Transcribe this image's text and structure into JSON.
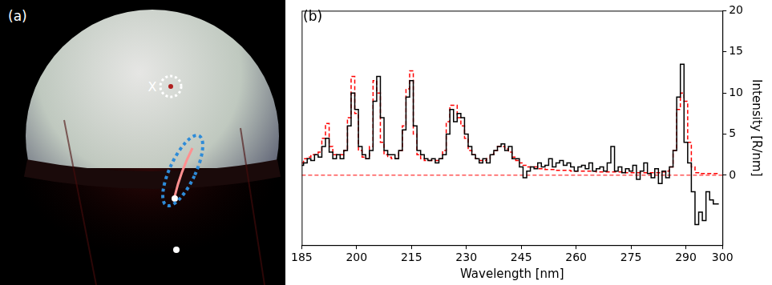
{
  "image_panel": {
    "label": "(a)",
    "marker_label": "X"
  },
  "chart_label": "(b)",
  "chart_data": {
    "type": "line",
    "x_label": "Wavelength [nm]",
    "y_label": "Intensity [R/nm]",
    "xlim": [
      185,
      300
    ],
    "xticks": [
      185,
      200,
      215,
      230,
      245,
      260,
      275,
      290,
      300
    ],
    "ylim": [
      -8.5,
      20
    ],
    "yticks": [
      0,
      5,
      10,
      15,
      20
    ],
    "grid": false,
    "series": [
      {
        "color": "#000000",
        "line_style": "solid",
        "x": [
          185,
          186,
          187,
          188,
          189,
          190,
          191,
          192,
          193,
          194,
          195,
          196,
          197,
          198,
          199,
          200,
          201,
          202,
          203,
          204,
          205,
          206,
          207,
          208,
          209,
          210,
          211,
          212,
          213,
          214,
          215,
          216,
          217,
          218,
          219,
          220,
          221,
          222,
          223,
          224,
          225,
          226,
          227,
          228,
          229,
          230,
          231,
          232,
          233,
          234,
          235,
          236,
          237,
          238,
          239,
          240,
          241,
          242,
          243,
          244,
          245,
          246,
          247,
          248,
          249,
          250,
          251,
          252,
          253,
          254,
          255,
          256,
          257,
          258,
          259,
          260,
          261,
          262,
          263,
          264,
          265,
          266,
          267,
          268,
          269,
          270,
          271,
          272,
          273,
          274,
          275,
          276,
          277,
          278,
          279,
          280,
          281,
          282,
          283,
          284,
          285,
          286,
          287,
          288,
          289,
          290,
          291,
          292,
          293,
          294,
          295,
          296,
          297,
          298,
          299
        ],
        "values": [
          1.2,
          1.5,
          2.0,
          1.8,
          2.5,
          2.2,
          3.5,
          4.5,
          2.8,
          2.0,
          2.5,
          2.0,
          3.0,
          6.0,
          10.0,
          8.0,
          3.5,
          2.5,
          2.0,
          3.0,
          9.0,
          12.0,
          7.0,
          3.0,
          2.5,
          2.5,
          2.0,
          3.0,
          5.5,
          9.5,
          11.5,
          6.0,
          3.0,
          2.5,
          2.0,
          1.8,
          2.0,
          1.5,
          2.0,
          2.5,
          5.0,
          8.0,
          6.5,
          7.5,
          7.0,
          5.0,
          3.5,
          2.5,
          2.0,
          1.5,
          2.0,
          1.5,
          2.5,
          3.0,
          3.5,
          3.8,
          3.0,
          3.5,
          2.0,
          2.0,
          1.0,
          -0.3,
          0.5,
          1.0,
          0.8,
          1.5,
          1.0,
          1.2,
          2.0,
          1.0,
          1.5,
          1.8,
          1.2,
          1.5,
          1.0,
          0.5,
          1.0,
          1.2,
          0.8,
          1.5,
          0.5,
          0.8,
          1.0,
          0.5,
          1.5,
          3.5,
          0.5,
          1.0,
          0.3,
          0.8,
          0.5,
          1.2,
          -0.5,
          0.5,
          1.5,
          0.2,
          -0.3,
          0.8,
          -1.0,
          0.5,
          -0.3,
          1.0,
          3.0,
          9.5,
          13.5,
          4.0,
          1.5,
          -2.0,
          -6.0,
          -4.5,
          -5.5,
          -2.0,
          -3.0,
          -3.5,
          -3.5
        ]
      },
      {
        "color": "#ff0000",
        "line_style": "dashed",
        "x": [
          185,
          186,
          187,
          188,
          189,
          190,
          191,
          192,
          193,
          194,
          195,
          196,
          197,
          198,
          199,
          200,
          201,
          202,
          203,
          204,
          205,
          206,
          207,
          208,
          209,
          210,
          211,
          212,
          213,
          214,
          215,
          216,
          217,
          218,
          219,
          220,
          221,
          222,
          223,
          224,
          225,
          226,
          227,
          228,
          229,
          230,
          231,
          232,
          233,
          234,
          235,
          236,
          237,
          238,
          239,
          240,
          241,
          242,
          243,
          244,
          245,
          246,
          247,
          248,
          249,
          250,
          251,
          252,
          253,
          254,
          255,
          256,
          257,
          258,
          259,
          260,
          261,
          262,
          263,
          264,
          265,
          266,
          267,
          268,
          269,
          270,
          271,
          272,
          273,
          274,
          275,
          276,
          277,
          278,
          279,
          280,
          281,
          282,
          283,
          284,
          285,
          286,
          287,
          288,
          289,
          290,
          291,
          292,
          293,
          294,
          295,
          296,
          297,
          298,
          299
        ],
        "values": [
          1.5,
          2.0,
          2.2,
          2.5,
          2.5,
          2.8,
          4.5,
          6.3,
          3.5,
          2.5,
          2.5,
          2.5,
          3.0,
          7.0,
          12.0,
          7.5,
          3.0,
          2.2,
          2.0,
          3.5,
          11.5,
          10.0,
          4.0,
          2.5,
          2.2,
          2.0,
          2.0,
          3.0,
          6.0,
          10.5,
          12.7,
          5.0,
          2.5,
          2.0,
          1.8,
          1.8,
          1.8,
          1.8,
          2.0,
          3.0,
          6.5,
          8.5,
          8.5,
          7.0,
          6.0,
          4.5,
          3.0,
          2.5,
          2.0,
          1.8,
          1.8,
          2.0,
          2.5,
          3.0,
          3.5,
          3.5,
          3.2,
          2.8,
          2.2,
          1.8,
          1.5,
          1.2,
          1.0,
          1.0,
          1.0,
          0.8,
          0.8,
          0.7,
          0.7,
          0.7,
          0.6,
          0.6,
          0.6,
          0.6,
          0.5,
          0.5,
          0.5,
          0.5,
          0.5,
          0.5,
          0.5,
          0.4,
          0.4,
          0.4,
          0.4,
          0.4,
          0.4,
          0.4,
          0.4,
          0.3,
          0.3,
          0.3,
          0.3,
          0.3,
          0.3,
          0.3,
          0.3,
          0.3,
          0.3,
          0.4,
          0.5,
          1.0,
          3.0,
          8.0,
          10.0,
          9.0,
          4.0,
          1.0,
          0.3,
          0.2,
          0.2,
          0.2,
          0.2,
          0.2,
          0.2
        ]
      },
      {
        "color": "#ff0000",
        "line_style": "dashed",
        "x": [
          185,
          300
        ],
        "values": [
          0,
          0
        ]
      }
    ]
  }
}
